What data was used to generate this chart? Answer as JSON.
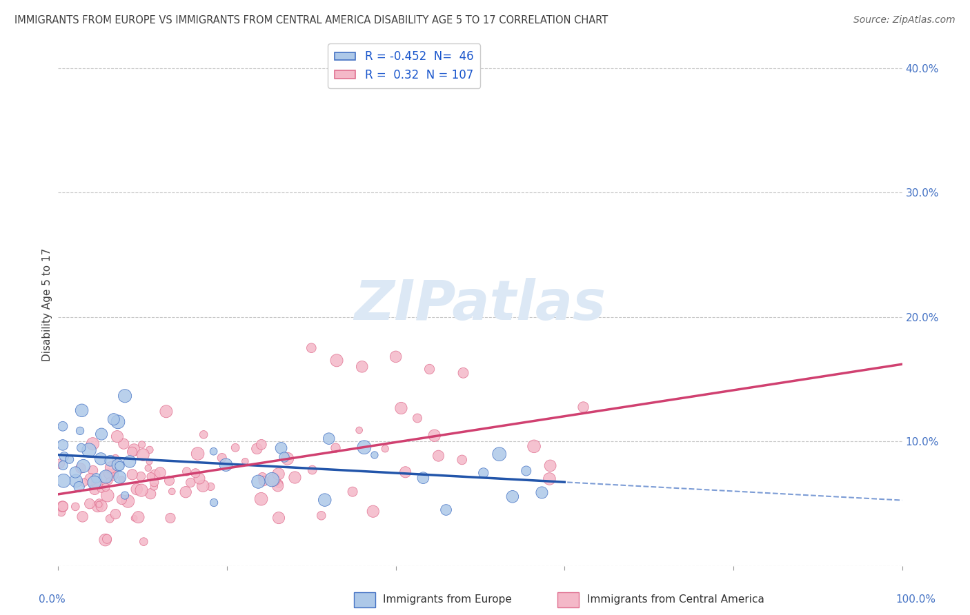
{
  "title": "IMMIGRANTS FROM EUROPE VS IMMIGRANTS FROM CENTRAL AMERICA DISABILITY AGE 5 TO 17 CORRELATION CHART",
  "source": "Source: ZipAtlas.com",
  "ylabel": "Disability Age 5 to 17",
  "xlim": [
    0.0,
    1.0
  ],
  "ylim": [
    0.0,
    0.42
  ],
  "yticks": [
    0.0,
    0.1,
    0.2,
    0.3,
    0.4
  ],
  "ytick_labels": [
    "",
    "10.0%",
    "20.0%",
    "30.0%",
    "40.0%"
  ],
  "europe_R": -0.452,
  "europe_N": 46,
  "central_america_R": 0.32,
  "central_america_N": 107,
  "europe_color": "#adc8e8",
  "europe_edge_color": "#4472c4",
  "europe_line_color": "#2255aa",
  "central_america_color": "#f4b8c8",
  "central_america_edge_color": "#e07090",
  "central_america_line_color": "#d04070",
  "watermark_color": "#dce8f5",
  "background_color": "#ffffff",
  "grid_color": "#c8c8c8",
  "legend_R_color": "#1a56cc",
  "title_color": "#404040",
  "axis_tick_color": "#4472c4",
  "bottom_label_europe_color": "#4472c4",
  "bottom_label_ca_color": "#d04070",
  "bottom_label_text_color": "#333333"
}
